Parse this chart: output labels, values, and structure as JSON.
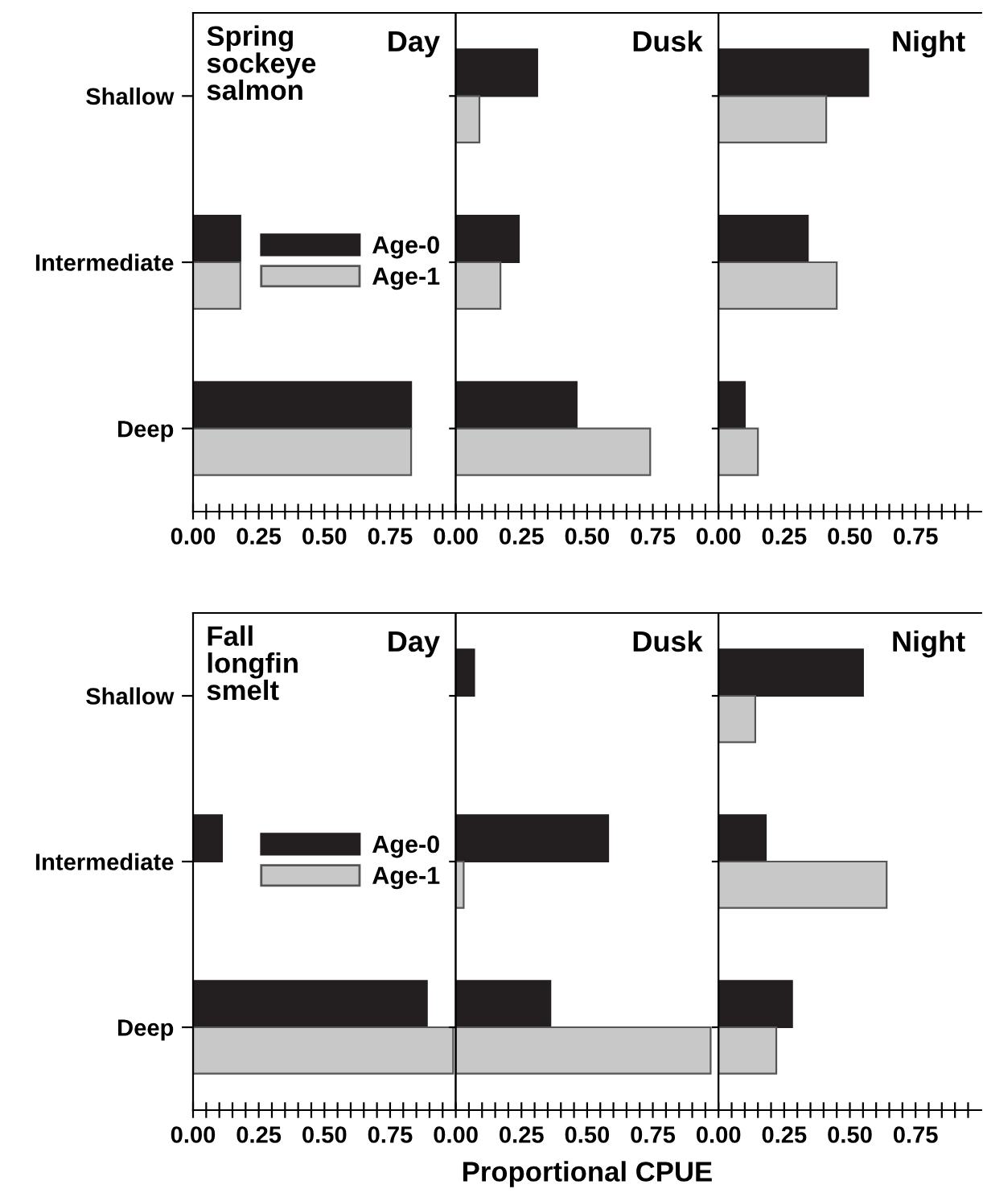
{
  "chart_data": [
    {
      "type": "bar",
      "orientation": "horizontal",
      "title": "Day",
      "annotations": [
        "Spring\nsockeye\nsalmon"
      ],
      "categories": [
        "Shallow",
        "Intermediate",
        "Deep"
      ],
      "legend": "center",
      "series": [
        {
          "name": "Age-0",
          "color": "#231f20",
          "values": [
            0,
            0.18,
            0.83
          ]
        },
        {
          "name": "Age-1",
          "color": "#c8c8c8",
          "values": [
            0,
            0.18,
            0.83
          ]
        }
      ],
      "xlim": [
        0,
        1.0
      ],
      "xticks": [
        {
          "value": 0,
          "label": "0.00"
        },
        {
          "value": 0.05,
          "label": null
        },
        {
          "value": 0.1,
          "label": null
        },
        {
          "value": 0.15,
          "label": null
        },
        {
          "value": 0.2,
          "label": null
        },
        {
          "value": 0.25,
          "label": "0.25"
        },
        {
          "value": 0.3,
          "label": null
        },
        {
          "value": 0.35,
          "label": null
        },
        {
          "value": 0.4,
          "label": null
        },
        {
          "value": 0.45,
          "label": null
        },
        {
          "value": 0.5,
          "label": "0.50"
        },
        {
          "value": 0.55,
          "label": null
        },
        {
          "value": 0.6,
          "label": null
        },
        {
          "value": 0.65,
          "label": null
        },
        {
          "value": 0.7,
          "label": null
        },
        {
          "value": 0.75,
          "label": "0.75"
        },
        {
          "value": 0.8,
          "label": null
        },
        {
          "value": 0.85,
          "label": null
        },
        {
          "value": 0.9,
          "label": null
        },
        {
          "value": 0.95,
          "label": null
        }
      ]
    },
    {
      "type": "bar",
      "orientation": "horizontal",
      "title": "Dusk",
      "categories": [
        null,
        null,
        null
      ],
      "tick_labels": "x",
      "series": [
        {
          "color": "#231f20",
          "values": [
            0.31,
            0.24,
            0.46
          ]
        },
        {
          "color": "#c8c8c8",
          "values": [
            0.09,
            0.17,
            0.74
          ]
        }
      ],
      "xlim": [
        0,
        1.0
      ],
      "xticks": [
        {
          "value": 0,
          "label": "0.00"
        },
        {
          "value": 0.05,
          "label": null
        },
        {
          "value": 0.1,
          "label": null
        },
        {
          "value": 0.15,
          "label": null
        },
        {
          "value": 0.2,
          "label": null
        },
        {
          "value": 0.25,
          "label": "0.25"
        },
        {
          "value": 0.3,
          "label": null
        },
        {
          "value": 0.35,
          "label": null
        },
        {
          "value": 0.4,
          "label": null
        },
        {
          "value": 0.45,
          "label": null
        },
        {
          "value": 0.5,
          "label": "0.50"
        },
        {
          "value": 0.55,
          "label": null
        },
        {
          "value": 0.6,
          "label": null
        },
        {
          "value": 0.65,
          "label": null
        },
        {
          "value": 0.7,
          "label": null
        },
        {
          "value": 0.75,
          "label": "0.75"
        },
        {
          "value": 0.8,
          "label": null
        },
        {
          "value": 0.85,
          "label": null
        },
        {
          "value": 0.9,
          "label": null
        },
        {
          "value": 0.95,
          "label": null
        }
      ]
    },
    {
      "type": "bar",
      "orientation": "horizontal",
      "title": "Night",
      "categories": [
        null,
        null,
        null
      ],
      "tick_labels": "x",
      "series": [
        {
          "color": "#231f20",
          "values": [
            0.57,
            0.34,
            0.1
          ]
        },
        {
          "color": "#c8c8c8",
          "values": [
            0.41,
            0.45,
            0.15
          ]
        }
      ],
      "xlim": [
        0,
        1.0
      ],
      "xticks": [
        {
          "value": 0,
          "label": "0.00"
        },
        {
          "value": 0.05,
          "label": null
        },
        {
          "value": 0.1,
          "label": null
        },
        {
          "value": 0.15,
          "label": null
        },
        {
          "value": 0.2,
          "label": null
        },
        {
          "value": 0.25,
          "label": "0.25"
        },
        {
          "value": 0.3,
          "label": null
        },
        {
          "value": 0.35,
          "label": null
        },
        {
          "value": 0.4,
          "label": null
        },
        {
          "value": 0.45,
          "label": null
        },
        {
          "value": 0.5,
          "label": "0.50"
        },
        {
          "value": 0.55,
          "label": null
        },
        {
          "value": 0.6,
          "label": null
        },
        {
          "value": 0.65,
          "label": null
        },
        {
          "value": 0.7,
          "label": null
        },
        {
          "value": 0.75,
          "label": "0.75"
        },
        {
          "value": 0.8,
          "label": null
        },
        {
          "value": 0.85,
          "label": null
        },
        {
          "value": 0.9,
          "label": null
        },
        {
          "value": 0.95,
          "label": null
        }
      ]
    },
    {
      "type": "bar",
      "orientation": "horizontal",
      "title": "Day",
      "annotations": [
        "Fall\nlongfin\nsmelt"
      ],
      "categories": [
        "Shallow",
        "Intermediate",
        "Deep"
      ],
      "legend": "center",
      "series": [
        {
          "name": "Age-0",
          "color": "#231f20",
          "values": [
            0,
            0.11,
            0.89
          ]
        },
        {
          "name": "Age-1",
          "color": "#c8c8c8",
          "values": [
            0,
            0,
            0.99
          ]
        }
      ],
      "xlim": [
        0,
        1.0
      ],
      "xticks": [
        {
          "value": 0,
          "label": "0.00"
        },
        {
          "value": 0.05,
          "label": null
        },
        {
          "value": 0.1,
          "label": null
        },
        {
          "value": 0.15,
          "label": null
        },
        {
          "value": 0.2,
          "label": null
        },
        {
          "value": 0.25,
          "label": "0.25"
        },
        {
          "value": 0.3,
          "label": null
        },
        {
          "value": 0.35,
          "label": null
        },
        {
          "value": 0.4,
          "label": null
        },
        {
          "value": 0.45,
          "label": null
        },
        {
          "value": 0.5,
          "label": "0.50"
        },
        {
          "value": 0.55,
          "label": null
        },
        {
          "value": 0.6,
          "label": null
        },
        {
          "value": 0.65,
          "label": null
        },
        {
          "value": 0.7,
          "label": null
        },
        {
          "value": 0.75,
          "label": "0.75"
        },
        {
          "value": 0.8,
          "label": null
        },
        {
          "value": 0.85,
          "label": null
        },
        {
          "value": 0.9,
          "label": null
        },
        {
          "value": 0.95,
          "label": null
        }
      ]
    },
    {
      "type": "bar",
      "orientation": "horizontal",
      "title": "Dusk",
      "xlabel": "Proportional CPUE",
      "categories": [
        null,
        null,
        null
      ],
      "tick_labels": "x",
      "series": [
        {
          "color": "#231f20",
          "values": [
            0.07,
            0.58,
            0.36
          ]
        },
        {
          "color": "#c8c8c8",
          "values": [
            0,
            0.03,
            0.97
          ]
        }
      ],
      "xlim": [
        0,
        1.0
      ],
      "xticks": [
        {
          "value": 0,
          "label": "0.00"
        },
        {
          "value": 0.05,
          "label": null
        },
        {
          "value": 0.1,
          "label": null
        },
        {
          "value": 0.15,
          "label": null
        },
        {
          "value": 0.2,
          "label": null
        },
        {
          "value": 0.25,
          "label": "0.25"
        },
        {
          "value": 0.3,
          "label": null
        },
        {
          "value": 0.35,
          "label": null
        },
        {
          "value": 0.4,
          "label": null
        },
        {
          "value": 0.45,
          "label": null
        },
        {
          "value": 0.5,
          "label": "0.50"
        },
        {
          "value": 0.55,
          "label": null
        },
        {
          "value": 0.6,
          "label": null
        },
        {
          "value": 0.65,
          "label": null
        },
        {
          "value": 0.7,
          "label": null
        },
        {
          "value": 0.75,
          "label": "0.75"
        },
        {
          "value": 0.8,
          "label": null
        },
        {
          "value": 0.85,
          "label": null
        },
        {
          "value": 0.9,
          "label": null
        },
        {
          "value": 0.95,
          "label": null
        }
      ]
    },
    {
      "type": "bar",
      "orientation": "horizontal",
      "title": "Night",
      "categories": [
        null,
        null,
        null
      ],
      "tick_labels": "x",
      "series": [
        {
          "color": "#231f20",
          "values": [
            0.55,
            0.18,
            0.28
          ]
        },
        {
          "color": "#c8c8c8",
          "values": [
            0.14,
            0.64,
            0.22
          ]
        }
      ],
      "xlim": [
        0,
        1.0
      ],
      "xticks": [
        {
          "value": 0,
          "label": "0.00"
        },
        {
          "value": 0.05,
          "label": null
        },
        {
          "value": 0.1,
          "label": null
        },
        {
          "value": 0.15,
          "label": null
        },
        {
          "value": 0.2,
          "label": null
        },
        {
          "value": 0.25,
          "label": "0.25"
        },
        {
          "value": 0.3,
          "label": null
        },
        {
          "value": 0.35,
          "label": null
        },
        {
          "value": 0.4,
          "label": null
        },
        {
          "value": 0.45,
          "label": null
        },
        {
          "value": 0.5,
          "label": "0.50"
        },
        {
          "value": 0.55,
          "label": null
        },
        {
          "value": 0.6,
          "label": null
        },
        {
          "value": 0.65,
          "label": null
        },
        {
          "value": 0.7,
          "label": null
        },
        {
          "value": 0.75,
          "label": "0.75"
        },
        {
          "value": 0.8,
          "label": null
        },
        {
          "value": 0.85,
          "label": null
        },
        {
          "value": 0.9,
          "label": null
        },
        {
          "value": 0.95,
          "label": null
        }
      ]
    }
  ]
}
